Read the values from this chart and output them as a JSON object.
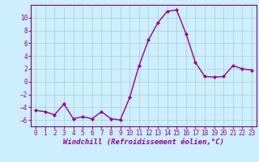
{
  "x": [
    0,
    1,
    2,
    3,
    4,
    5,
    6,
    7,
    8,
    9,
    10,
    11,
    12,
    13,
    14,
    15,
    16,
    17,
    18,
    19,
    20,
    21,
    22,
    23
  ],
  "y": [
    -4.5,
    -4.7,
    -5.2,
    -3.5,
    -5.8,
    -5.5,
    -5.8,
    -4.7,
    -5.8,
    -6.0,
    -2.5,
    2.5,
    6.5,
    9.2,
    11.0,
    11.2,
    7.5,
    3.0,
    0.8,
    0.7,
    0.8,
    2.5,
    2.0,
    1.8
  ],
  "line_color": "#990099",
  "marker": "D",
  "marker_size": 2.0,
  "bg_color": "#cceeff",
  "grid_color": "#aacccc",
  "xlabel": "Windchill (Refroidissement éolien,°C)",
  "xlim": [
    -0.5,
    23.5
  ],
  "ylim": [
    -7,
    12
  ],
  "yticks": [
    -6,
    -4,
    -2,
    0,
    2,
    4,
    6,
    8,
    10
  ],
  "xticks": [
    0,
    1,
    2,
    3,
    4,
    5,
    6,
    7,
    8,
    9,
    10,
    11,
    12,
    13,
    14,
    15,
    16,
    17,
    18,
    19,
    20,
    21,
    22,
    23
  ],
  "tick_fontsize": 5.5,
  "xlabel_fontsize": 6.5,
  "line_width": 1.0,
  "spine_color": "#800080",
  "bottom_spine_color": "#800080"
}
